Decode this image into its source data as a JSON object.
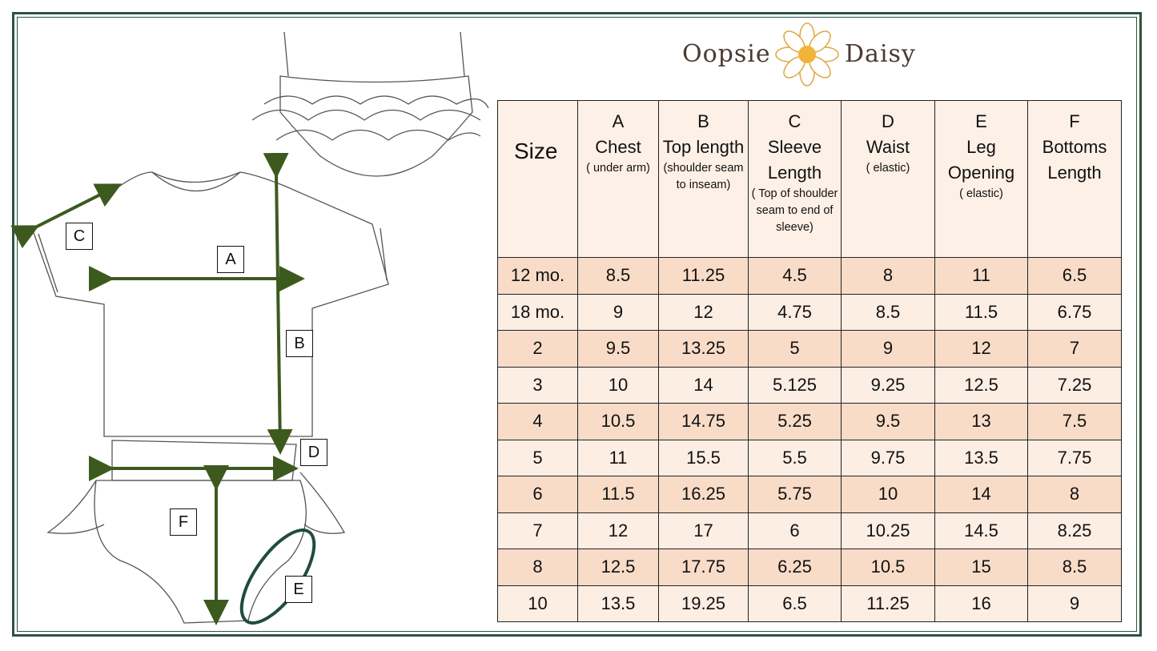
{
  "brand": {
    "logo_text_left": "Oopsie",
    "logo_text_right": "Daisy",
    "colors": {
      "frame": "#2f5240",
      "arrow": "#3d5a1e",
      "leg_ellipse": "#1f4d3a",
      "row_dark": "#f8dcc8",
      "row_light": "#fdeee4"
    }
  },
  "diagram": {
    "labels": [
      "A",
      "B",
      "C",
      "D",
      "E",
      "F"
    ]
  },
  "table": {
    "size_header": "Size",
    "columns": [
      {
        "letter": "A",
        "name": "Chest",
        "note": "( under arm)"
      },
      {
        "letter": "B",
        "name": "Top length",
        "note": "(shoulder seam to inseam)"
      },
      {
        "letter": "C",
        "name": "Sleeve Length",
        "note": "( Top of shoulder seam to end of sleeve)"
      },
      {
        "letter": "D",
        "name": "Waist",
        "note": "( elastic)"
      },
      {
        "letter": "E",
        "name": "Leg Opening",
        "note": "( elastic)"
      },
      {
        "letter": "F",
        "name": "Bottoms Length",
        "note": ""
      }
    ],
    "rows": [
      [
        "12 mo.",
        "8.5",
        "11.25",
        "4.5",
        "8",
        "11",
        "6.5"
      ],
      [
        "18 mo.",
        "9",
        "12",
        "4.75",
        "8.5",
        "11.5",
        "6.75"
      ],
      [
        "2",
        "9.5",
        "13.25",
        "5",
        "9",
        "12",
        "7"
      ],
      [
        "3",
        "10",
        "14",
        "5.125",
        "9.25",
        "12.5",
        "7.25"
      ],
      [
        "4",
        "10.5",
        "14.75",
        "5.25",
        "9.5",
        "13",
        "7.5"
      ],
      [
        "5",
        "11",
        "15.5",
        "5.5",
        "9.75",
        "13.5",
        "7.75"
      ],
      [
        "6",
        "11.5",
        "16.25",
        "5.75",
        "10",
        "14",
        "8"
      ],
      [
        "7",
        "12",
        "17",
        "6",
        "10.25",
        "14.5",
        "8.25"
      ],
      [
        "8",
        "12.5",
        "17.75",
        "6.25",
        "10.5",
        "15",
        "8.5"
      ],
      [
        "10",
        "13.5",
        "19.25",
        "6.5",
        "11.25",
        "16",
        "9"
      ]
    ]
  }
}
